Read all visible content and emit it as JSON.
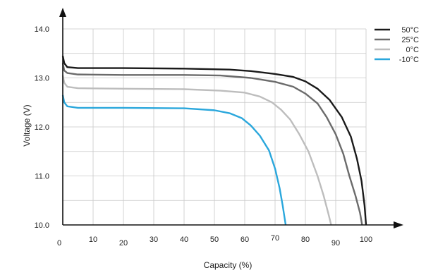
{
  "chart_data": {
    "type": "line",
    "title": "",
    "xlabel": "Capacity (%)",
    "ylabel": "Voltage (V)",
    "xlim": [
      0,
      100
    ],
    "ylim": [
      10.0,
      14.0
    ],
    "x_ticks": [
      "0",
      "10",
      "20",
      "30",
      "40",
      "50",
      "60",
      "70",
      "80",
      "90",
      "100"
    ],
    "y_ticks": [
      "10.0",
      "11.0",
      "12.0",
      "13.0",
      "14.0"
    ],
    "grid": true,
    "legend_position": "top-right",
    "series": [
      {
        "name": "50°C",
        "color": "#1a1a1a",
        "points": [
          [
            0,
            13.45
          ],
          [
            0.5,
            13.3
          ],
          [
            1.5,
            13.22
          ],
          [
            5,
            13.2
          ],
          [
            20,
            13.2
          ],
          [
            40,
            13.19
          ],
          [
            55,
            13.17
          ],
          [
            62,
            13.14
          ],
          [
            70,
            13.08
          ],
          [
            76,
            13.02
          ],
          [
            80,
            12.93
          ],
          [
            84,
            12.78
          ],
          [
            88,
            12.55
          ],
          [
            92,
            12.2
          ],
          [
            95,
            11.8
          ],
          [
            97,
            11.35
          ],
          [
            98.5,
            10.9
          ],
          [
            99.5,
            10.4
          ],
          [
            100,
            10.0
          ]
        ]
      },
      {
        "name": "25°C",
        "color": "#6b6b6b",
        "points": [
          [
            0,
            13.3
          ],
          [
            0.5,
            13.15
          ],
          [
            1.5,
            13.1
          ],
          [
            5,
            13.07
          ],
          [
            20,
            13.06
          ],
          [
            40,
            13.06
          ],
          [
            52,
            13.05
          ],
          [
            62,
            13.0
          ],
          [
            70,
            12.92
          ],
          [
            76,
            12.82
          ],
          [
            80,
            12.68
          ],
          [
            84,
            12.48
          ],
          [
            87,
            12.2
          ],
          [
            90,
            11.85
          ],
          [
            92.5,
            11.45
          ],
          [
            94.5,
            11.0
          ],
          [
            96.5,
            10.6
          ],
          [
            98,
            10.25
          ],
          [
            98.7,
            10.0
          ]
        ]
      },
      {
        "name": "0°C",
        "color": "#bdbdbd",
        "points": [
          [
            0,
            13.05
          ],
          [
            0.5,
            12.9
          ],
          [
            1.5,
            12.82
          ],
          [
            5,
            12.79
          ],
          [
            20,
            12.78
          ],
          [
            40,
            12.77
          ],
          [
            52,
            12.74
          ],
          [
            60,
            12.7
          ],
          [
            65,
            12.62
          ],
          [
            69,
            12.5
          ],
          [
            72,
            12.35
          ],
          [
            75,
            12.15
          ],
          [
            78,
            11.85
          ],
          [
            81,
            11.5
          ],
          [
            84,
            11.0
          ],
          [
            86,
            10.6
          ],
          [
            87.5,
            10.25
          ],
          [
            88.5,
            10.0
          ]
        ]
      },
      {
        "name": "-10°C",
        "color": "#2aa7dc",
        "points": [
          [
            0,
            12.65
          ],
          [
            0.5,
            12.5
          ],
          [
            1.5,
            12.42
          ],
          [
            5,
            12.39
          ],
          [
            20,
            12.39
          ],
          [
            40,
            12.38
          ],
          [
            50,
            12.34
          ],
          [
            55,
            12.28
          ],
          [
            59,
            12.18
          ],
          [
            62,
            12.03
          ],
          [
            65,
            11.82
          ],
          [
            68,
            11.52
          ],
          [
            70,
            11.15
          ],
          [
            71.5,
            10.75
          ],
          [
            72.5,
            10.4
          ],
          [
            73.5,
            10.0
          ]
        ]
      }
    ]
  }
}
